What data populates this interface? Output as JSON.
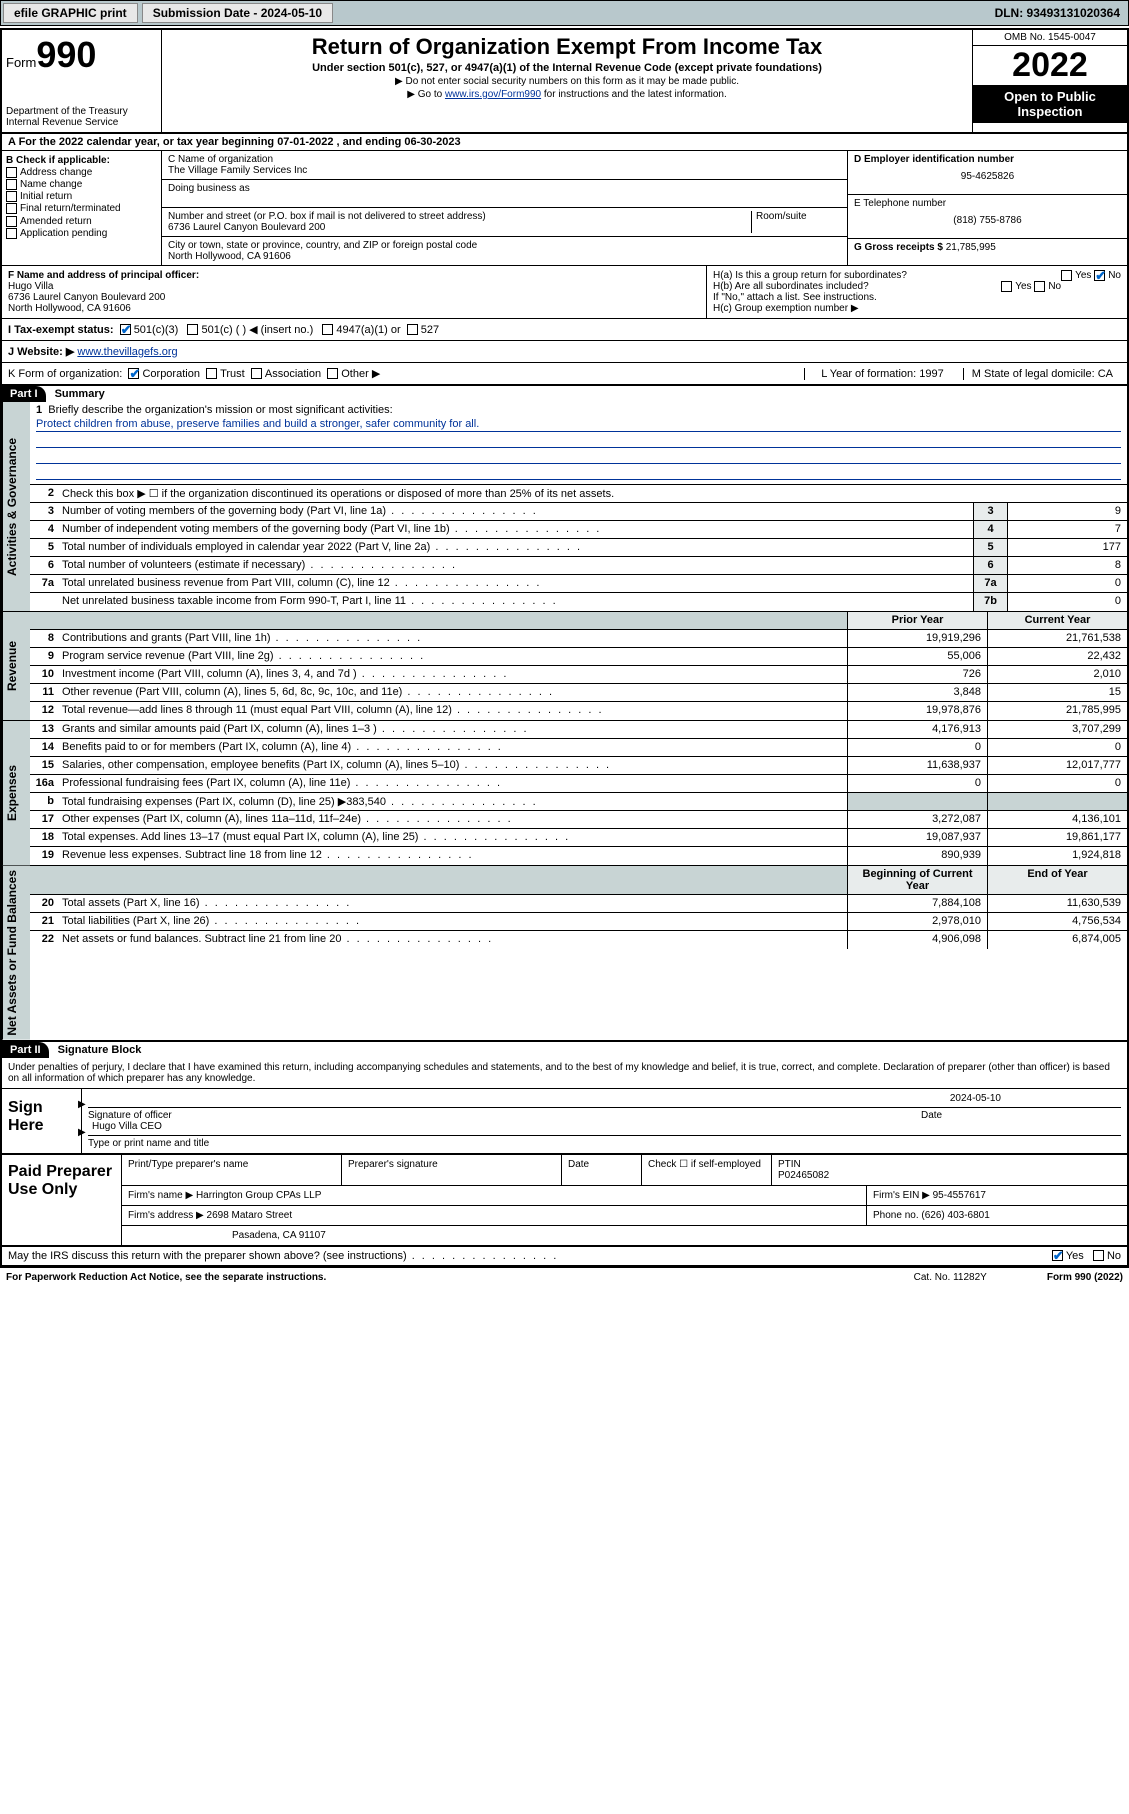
{
  "topbar": {
    "efile": "efile GRAPHIC print",
    "submission_label": "Submission Date - 2024-05-10",
    "dln": "DLN: 93493131020364"
  },
  "header": {
    "form_word": "Form",
    "form_num": "990",
    "dept": "Department of the Treasury",
    "irs": "Internal Revenue Service",
    "title": "Return of Organization Exempt From Income Tax",
    "sub": "Under section 501(c), 527, or 4947(a)(1) of the Internal Revenue Code (except private foundations)",
    "note1": "▶ Do not enter social security numbers on this form as it may be made public.",
    "note2_pre": "▶ Go to ",
    "note2_link": "www.irs.gov/Form990",
    "note2_post": " for instructions and the latest information.",
    "omb": "OMB No. 1545-0047",
    "year": "2022",
    "open1": "Open to Public",
    "open2": "Inspection"
  },
  "line_a": "A For the 2022 calendar year, or tax year beginning 07-01-2022   , and ending 06-30-2023",
  "box_b": {
    "hdr": "B Check if applicable:",
    "opts": [
      "Address change",
      "Name change",
      "Initial return",
      "Final return/terminated",
      "Amended return",
      "Application pending"
    ]
  },
  "box_c": {
    "name_lbl": "C Name of organization",
    "name": "The Village Family Services Inc",
    "dba_lbl": "Doing business as",
    "addr_lbl": "Number and street (or P.O. box if mail is not delivered to street address)",
    "room_lbl": "Room/suite",
    "addr": "6736 Laurel Canyon Boulevard 200",
    "city_lbl": "City or town, state or province, country, and ZIP or foreign postal code",
    "city": "North Hollywood, CA  91606"
  },
  "box_d": {
    "lbl": "D Employer identification number",
    "val": "95-4625826"
  },
  "box_e": {
    "lbl": "E Telephone number",
    "val": "(818) 755-8786"
  },
  "box_g": {
    "lbl": "G Gross receipts $",
    "val": "21,785,995"
  },
  "box_f": {
    "lbl": "F Name and address of principal officer:",
    "name": "Hugo Villa",
    "addr1": "6736 Laurel Canyon Boulevard 200",
    "addr2": "North Hollywood, CA  91606"
  },
  "box_h": {
    "ha": "H(a)  Is this a group return for subordinates?",
    "ha_no": "No",
    "hb": "H(b)  Are all subordinates included?",
    "hb_note": "If \"No,\" attach a list. See instructions.",
    "hc": "H(c)  Group exemption number ▶"
  },
  "row_i": {
    "lbl": "I   Tax-exempt status:",
    "o1": "501(c)(3)",
    "o2": "501(c) (  ) ◀ (insert no.)",
    "o3": "4947(a)(1) or",
    "o4": "527"
  },
  "row_j": {
    "lbl": "J   Website: ▶",
    "val": "www.thevillagefs.org"
  },
  "row_k": {
    "lbl": "K Form of organization:",
    "o1": "Corporation",
    "o2": "Trust",
    "o3": "Association",
    "o4": "Other ▶",
    "l": "L Year of formation: 1997",
    "m": "M State of legal domicile: CA"
  },
  "part1": {
    "hdr": "Part I",
    "title": "Summary",
    "vtab_gov": "Activities & Governance",
    "vtab_rev": "Revenue",
    "vtab_exp": "Expenses",
    "vtab_net": "Net Assets or Fund Balances",
    "l1": "Briefly describe the organization's mission or most significant activities:",
    "mission": "Protect children from abuse, preserve families and build a stronger, safer community for all.",
    "l2": "Check this box ▶ ☐  if the organization discontinued its operations or disposed of more than 25% of its net assets.",
    "hdr_py": "Prior Year",
    "hdr_cy": "Current Year",
    "hdr_by": "Beginning of Current Year",
    "hdr_ey": "End of Year",
    "rows_gov": [
      {
        "n": "3",
        "d": "Number of voting members of the governing body (Part VI, line 1a)",
        "box": "3",
        "v": "9"
      },
      {
        "n": "4",
        "d": "Number of independent voting members of the governing body (Part VI, line 1b)",
        "box": "4",
        "v": "7"
      },
      {
        "n": "5",
        "d": "Total number of individuals employed in calendar year 2022 (Part V, line 2a)",
        "box": "5",
        "v": "177"
      },
      {
        "n": "6",
        "d": "Total number of volunteers (estimate if necessary)",
        "box": "6",
        "v": "8"
      },
      {
        "n": "7a",
        "d": "Total unrelated business revenue from Part VIII, column (C), line 12",
        "box": "7a",
        "v": "0"
      },
      {
        "n": "",
        "d": "Net unrelated business taxable income from Form 990-T, Part I, line 11",
        "box": "7b",
        "v": "0"
      }
    ],
    "rows_rev": [
      {
        "n": "8",
        "d": "Contributions and grants (Part VIII, line 1h)",
        "py": "19,919,296",
        "cy": "21,761,538"
      },
      {
        "n": "9",
        "d": "Program service revenue (Part VIII, line 2g)",
        "py": "55,006",
        "cy": "22,432"
      },
      {
        "n": "10",
        "d": "Investment income (Part VIII, column (A), lines 3, 4, and 7d )",
        "py": "726",
        "cy": "2,010"
      },
      {
        "n": "11",
        "d": "Other revenue (Part VIII, column (A), lines 5, 6d, 8c, 9c, 10c, and 11e)",
        "py": "3,848",
        "cy": "15"
      },
      {
        "n": "12",
        "d": "Total revenue—add lines 8 through 11 (must equal Part VIII, column (A), line 12)",
        "py": "19,978,876",
        "cy": "21,785,995"
      }
    ],
    "rows_exp": [
      {
        "n": "13",
        "d": "Grants and similar amounts paid (Part IX, column (A), lines 1–3 )",
        "py": "4,176,913",
        "cy": "3,707,299"
      },
      {
        "n": "14",
        "d": "Benefits paid to or for members (Part IX, column (A), line 4)",
        "py": "0",
        "cy": "0"
      },
      {
        "n": "15",
        "d": "Salaries, other compensation, employee benefits (Part IX, column (A), lines 5–10)",
        "py": "11,638,937",
        "cy": "12,017,777"
      },
      {
        "n": "16a",
        "d": "Professional fundraising fees (Part IX, column (A), line 11e)",
        "py": "0",
        "cy": "0"
      },
      {
        "n": "b",
        "d": "Total fundraising expenses (Part IX, column (D), line 25) ▶383,540",
        "py": "",
        "cy": "",
        "shade": true
      },
      {
        "n": "17",
        "d": "Other expenses (Part IX, column (A), lines 11a–11d, 11f–24e)",
        "py": "3,272,087",
        "cy": "4,136,101"
      },
      {
        "n": "18",
        "d": "Total expenses. Add lines 13–17 (must equal Part IX, column (A), line 25)",
        "py": "19,087,937",
        "cy": "19,861,177"
      },
      {
        "n": "19",
        "d": "Revenue less expenses. Subtract line 18 from line 12",
        "py": "890,939",
        "cy": "1,924,818"
      }
    ],
    "rows_net": [
      {
        "n": "20",
        "d": "Total assets (Part X, line 16)",
        "py": "7,884,108",
        "cy": "11,630,539"
      },
      {
        "n": "21",
        "d": "Total liabilities (Part X, line 26)",
        "py": "2,978,010",
        "cy": "4,756,534"
      },
      {
        "n": "22",
        "d": "Net assets or fund balances. Subtract line 21 from line 20",
        "py": "4,906,098",
        "cy": "6,874,005"
      }
    ]
  },
  "part2": {
    "hdr": "Part II",
    "title": "Signature Block",
    "decl": "Under penalties of perjury, I declare that I have examined this return, including accompanying schedules and statements, and to the best of my knowledge and belief, it is true, correct, and complete. Declaration of preparer (other than officer) is based on all information of which preparer has any knowledge.",
    "sign_here": "Sign Here",
    "sig_officer": "Signature of officer",
    "sig_date": "Date",
    "sig_date_val": "2024-05-10",
    "name_title": "Hugo Villa CEO",
    "name_title_lbl": "Type or print name and title",
    "paid": "Paid Preparer Use Only",
    "p_name_lbl": "Print/Type preparer's name",
    "p_sig_lbl": "Preparer's signature",
    "p_date_lbl": "Date",
    "p_check": "Check ☐ if self-employed",
    "ptin_lbl": "PTIN",
    "ptin": "P02465082",
    "firm_name_lbl": "Firm's name    ▶",
    "firm_name": "Harrington Group CPAs LLP",
    "firm_ein_lbl": "Firm's EIN ▶",
    "firm_ein": "95-4557617",
    "firm_addr_lbl": "Firm's address ▶",
    "firm_addr1": "2698 Mataro Street",
    "firm_addr2": "Pasadena, CA  91107",
    "phone_lbl": "Phone no.",
    "phone": "(626) 403-6801",
    "discuss": "May the IRS discuss this return with the preparer shown above? (see instructions)",
    "yes": "Yes",
    "no": "No"
  },
  "footer": {
    "left": "For Paperwork Reduction Act Notice, see the separate instructions.",
    "mid": "Cat. No. 11282Y",
    "right": "Form 990 (2022)"
  },
  "colors": {
    "topbar_bg": "#b8c8cc",
    "link": "#003399",
    "vtab_bg": "#c8d4d4",
    "shade_bg": "#e8ecec",
    "check": "#0066cc"
  }
}
